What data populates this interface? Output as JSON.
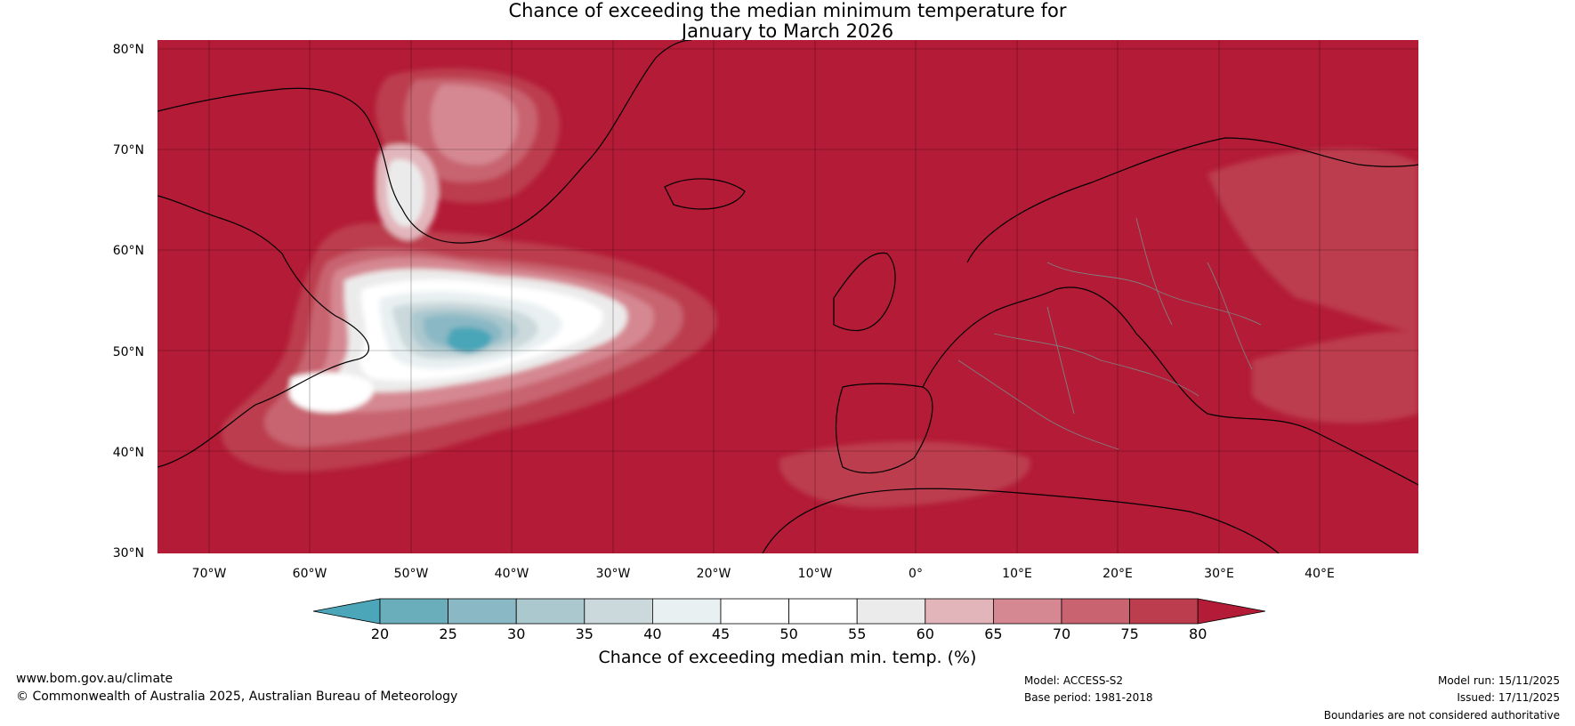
{
  "title": {
    "line1": "Chance of exceeding the median minimum temperature for",
    "line2": "January to March 2026"
  },
  "map": {
    "latitude_labels": [
      "80°N",
      "70°N",
      "60°N",
      "50°N",
      "40°N",
      "30°N"
    ],
    "longitude_labels": [
      "70°W",
      "60°W",
      "50°W",
      "40°W",
      "30°W",
      "20°W",
      "10°W",
      "0°",
      "10°E",
      "20°E",
      "30°E",
      "40°E"
    ],
    "background_category": "80",
    "colors": {
      "ocean_high": "#b31b36",
      "land_border": "#000000",
      "country_border": "#808080"
    }
  },
  "legend": {
    "title": "Chance of exceeding median min. temp. (%)",
    "ticks": [
      "20",
      "25",
      "30",
      "35",
      "40",
      "45",
      "50",
      "55",
      "60",
      "65",
      "70",
      "75",
      "80"
    ],
    "colors": [
      "#4aa6b8",
      "#6aaebc",
      "#8ab8c4",
      "#abc8cf",
      "#cbd9dc",
      "#e9f0f1",
      "#ffffff",
      "#ffffff",
      "#ecebeb",
      "#e2b5bb",
      "#d58892",
      "#c8636f",
      "#bc3d4e",
      "#b31b36"
    ]
  },
  "footer": {
    "website": "www.bom.gov.au/climate",
    "copyright": "© Commonwealth of Australia 2025, Australian Bureau of Meteorology",
    "model": "Model: ACCESS-S2",
    "base_period": "Base period: 1981-2018",
    "model_run": "Model run: 15/11/2025",
    "issued": "Issued: 17/11/2025",
    "disclaimer": "Boundaries are not considered authoritative"
  }
}
